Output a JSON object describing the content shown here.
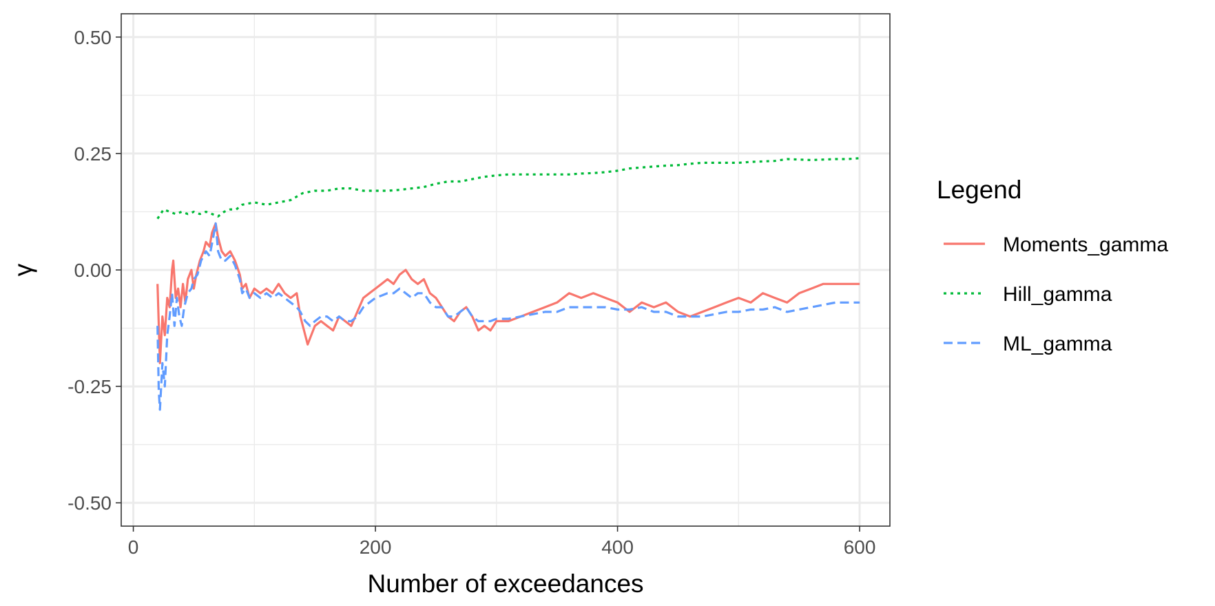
{
  "chart_data": {
    "type": "line",
    "xlabel": "Number of exceedances",
    "ylabel": "γ",
    "xlim": [
      -10,
      625
    ],
    "ylim": [
      -0.55,
      0.55
    ],
    "xticks": [
      0,
      200,
      400,
      600
    ],
    "xtick_labels": [
      "0",
      "200",
      "400",
      "600"
    ],
    "yticks": [
      -0.5,
      -0.25,
      0.0,
      0.25,
      0.5
    ],
    "ytick_labels": [
      "-0.50",
      "-0.25",
      "0.00",
      "0.25",
      "0.50"
    ],
    "grid": true,
    "legend": {
      "title": "Legend",
      "position": "right"
    },
    "series": [
      {
        "name": "Moments_gamma",
        "color": "#F8766D",
        "dash": "solid",
        "points": [
          [
            20,
            -0.03
          ],
          [
            22,
            -0.2
          ],
          [
            24,
            -0.1
          ],
          [
            26,
            -0.14
          ],
          [
            28,
            -0.06
          ],
          [
            30,
            -0.08
          ],
          [
            32,
            0.0
          ],
          [
            33,
            0.02
          ],
          [
            35,
            -0.06
          ],
          [
            37,
            -0.04
          ],
          [
            39,
            -0.08
          ],
          [
            41,
            -0.03
          ],
          [
            43,
            -0.07
          ],
          [
            45,
            -0.02
          ],
          [
            48,
            0.0
          ],
          [
            50,
            -0.04
          ],
          [
            52,
            -0.01
          ],
          [
            55,
            0.02
          ],
          [
            58,
            0.04
          ],
          [
            60,
            0.06
          ],
          [
            63,
            0.05
          ],
          [
            65,
            0.08
          ],
          [
            68,
            0.1
          ],
          [
            70,
            0.07
          ],
          [
            73,
            0.04
          ],
          [
            76,
            0.03
          ],
          [
            80,
            0.04
          ],
          [
            84,
            0.02
          ],
          [
            88,
            -0.01
          ],
          [
            90,
            -0.04
          ],
          [
            93,
            -0.03
          ],
          [
            96,
            -0.06
          ],
          [
            100,
            -0.04
          ],
          [
            105,
            -0.05
          ],
          [
            110,
            -0.04
          ],
          [
            115,
            -0.05
          ],
          [
            120,
            -0.03
          ],
          [
            125,
            -0.05
          ],
          [
            130,
            -0.06
          ],
          [
            135,
            -0.05
          ],
          [
            138,
            -0.1
          ],
          [
            141,
            -0.13
          ],
          [
            144,
            -0.16
          ],
          [
            147,
            -0.14
          ],
          [
            150,
            -0.12
          ],
          [
            155,
            -0.11
          ],
          [
            160,
            -0.12
          ],
          [
            165,
            -0.13
          ],
          [
            170,
            -0.1
          ],
          [
            175,
            -0.11
          ],
          [
            180,
            -0.12
          ],
          [
            185,
            -0.09
          ],
          [
            190,
            -0.06
          ],
          [
            195,
            -0.05
          ],
          [
            200,
            -0.04
          ],
          [
            205,
            -0.03
          ],
          [
            210,
            -0.02
          ],
          [
            215,
            -0.03
          ],
          [
            220,
            -0.01
          ],
          [
            225,
            0.0
          ],
          [
            230,
            -0.02
          ],
          [
            235,
            -0.03
          ],
          [
            240,
            -0.02
          ],
          [
            245,
            -0.05
          ],
          [
            250,
            -0.06
          ],
          [
            255,
            -0.08
          ],
          [
            260,
            -0.1
          ],
          [
            265,
            -0.11
          ],
          [
            270,
            -0.09
          ],
          [
            275,
            -0.08
          ],
          [
            280,
            -0.1
          ],
          [
            285,
            -0.13
          ],
          [
            290,
            -0.12
          ],
          [
            295,
            -0.13
          ],
          [
            300,
            -0.11
          ],
          [
            310,
            -0.11
          ],
          [
            320,
            -0.1
          ],
          [
            330,
            -0.09
          ],
          [
            340,
            -0.08
          ],
          [
            350,
            -0.07
          ],
          [
            360,
            -0.05
          ],
          [
            370,
            -0.06
          ],
          [
            380,
            -0.05
          ],
          [
            390,
            -0.06
          ],
          [
            400,
            -0.07
          ],
          [
            410,
            -0.09
          ],
          [
            420,
            -0.07
          ],
          [
            430,
            -0.08
          ],
          [
            440,
            -0.07
          ],
          [
            450,
            -0.09
          ],
          [
            460,
            -0.1
          ],
          [
            470,
            -0.09
          ],
          [
            480,
            -0.08
          ],
          [
            490,
            -0.07
          ],
          [
            500,
            -0.06
          ],
          [
            510,
            -0.07
          ],
          [
            520,
            -0.05
          ],
          [
            530,
            -0.06
          ],
          [
            540,
            -0.07
          ],
          [
            550,
            -0.05
          ],
          [
            560,
            -0.04
          ],
          [
            570,
            -0.03
          ],
          [
            580,
            -0.03
          ],
          [
            590,
            -0.03
          ],
          [
            600,
            -0.03
          ]
        ]
      },
      {
        "name": "Hill_gamma",
        "color": "#00BA38",
        "dash": "dotted",
        "points": [
          [
            20,
            0.11
          ],
          [
            25,
            0.13
          ],
          [
            30,
            0.125
          ],
          [
            35,
            0.12
          ],
          [
            40,
            0.125
          ],
          [
            45,
            0.12
          ],
          [
            50,
            0.125
          ],
          [
            55,
            0.12
          ],
          [
            60,
            0.125
          ],
          [
            65,
            0.12
          ],
          [
            70,
            0.115
          ],
          [
            75,
            0.125
          ],
          [
            80,
            0.13
          ],
          [
            85,
            0.13
          ],
          [
            90,
            0.14
          ],
          [
            100,
            0.145
          ],
          [
            110,
            0.14
          ],
          [
            120,
            0.145
          ],
          [
            130,
            0.15
          ],
          [
            140,
            0.165
          ],
          [
            150,
            0.17
          ],
          [
            160,
            0.17
          ],
          [
            170,
            0.175
          ],
          [
            180,
            0.175
          ],
          [
            190,
            0.17
          ],
          [
            200,
            0.17
          ],
          [
            210,
            0.17
          ],
          [
            220,
            0.172
          ],
          [
            230,
            0.175
          ],
          [
            240,
            0.178
          ],
          [
            250,
            0.185
          ],
          [
            260,
            0.19
          ],
          [
            270,
            0.19
          ],
          [
            280,
            0.195
          ],
          [
            290,
            0.2
          ],
          [
            300,
            0.203
          ],
          [
            310,
            0.205
          ],
          [
            320,
            0.205
          ],
          [
            330,
            0.205
          ],
          [
            340,
            0.205
          ],
          [
            350,
            0.205
          ],
          [
            360,
            0.205
          ],
          [
            370,
            0.207
          ],
          [
            380,
            0.208
          ],
          [
            390,
            0.21
          ],
          [
            400,
            0.213
          ],
          [
            410,
            0.218
          ],
          [
            420,
            0.22
          ],
          [
            430,
            0.222
          ],
          [
            440,
            0.224
          ],
          [
            450,
            0.225
          ],
          [
            460,
            0.228
          ],
          [
            470,
            0.23
          ],
          [
            480,
            0.23
          ],
          [
            490,
            0.23
          ],
          [
            500,
            0.23
          ],
          [
            510,
            0.232
          ],
          [
            520,
            0.233
          ],
          [
            530,
            0.234
          ],
          [
            540,
            0.238
          ],
          [
            550,
            0.237
          ],
          [
            560,
            0.236
          ],
          [
            570,
            0.237
          ],
          [
            580,
            0.238
          ],
          [
            590,
            0.238
          ],
          [
            600,
            0.24
          ]
        ]
      },
      {
        "name": "ML_gamma",
        "color": "#619CFF",
        "dash": "dashed",
        "points": [
          [
            20,
            -0.12
          ],
          [
            21,
            -0.26
          ],
          [
            22,
            -0.3
          ],
          [
            24,
            -0.2
          ],
          [
            26,
            -0.25
          ],
          [
            28,
            -0.14
          ],
          [
            30,
            -0.1
          ],
          [
            32,
            -0.05
          ],
          [
            34,
            -0.12
          ],
          [
            36,
            -0.06
          ],
          [
            38,
            -0.1
          ],
          [
            40,
            -0.12
          ],
          [
            42,
            -0.08
          ],
          [
            45,
            -0.05
          ],
          [
            48,
            -0.04
          ],
          [
            50,
            -0.02
          ],
          [
            53,
            -0.01
          ],
          [
            56,
            0.02
          ],
          [
            60,
            0.04
          ],
          [
            63,
            0.03
          ],
          [
            66,
            0.07
          ],
          [
            68,
            0.1
          ],
          [
            70,
            0.04
          ],
          [
            73,
            0.02
          ],
          [
            76,
            0.02
          ],
          [
            80,
            0.03
          ],
          [
            84,
            0.01
          ],
          [
            88,
            -0.02
          ],
          [
            90,
            -0.05
          ],
          [
            93,
            -0.04
          ],
          [
            96,
            -0.06
          ],
          [
            100,
            -0.05
          ],
          [
            105,
            -0.06
          ],
          [
            110,
            -0.05
          ],
          [
            115,
            -0.06
          ],
          [
            120,
            -0.05
          ],
          [
            125,
            -0.06
          ],
          [
            130,
            -0.07
          ],
          [
            135,
            -0.08
          ],
          [
            138,
            -0.09
          ],
          [
            142,
            -0.11
          ],
          [
            146,
            -0.12
          ],
          [
            150,
            -0.11
          ],
          [
            155,
            -0.1
          ],
          [
            160,
            -0.1
          ],
          [
            165,
            -0.11
          ],
          [
            170,
            -0.1
          ],
          [
            175,
            -0.11
          ],
          [
            180,
            -0.11
          ],
          [
            185,
            -0.1
          ],
          [
            190,
            -0.08
          ],
          [
            195,
            -0.07
          ],
          [
            200,
            -0.06
          ],
          [
            205,
            -0.055
          ],
          [
            210,
            -0.05
          ],
          [
            215,
            -0.05
          ],
          [
            220,
            -0.04
          ],
          [
            225,
            -0.05
          ],
          [
            230,
            -0.06
          ],
          [
            235,
            -0.05
          ],
          [
            240,
            -0.05
          ],
          [
            245,
            -0.07
          ],
          [
            250,
            -0.08
          ],
          [
            255,
            -0.08
          ],
          [
            260,
            -0.1
          ],
          [
            265,
            -0.1
          ],
          [
            270,
            -0.09
          ],
          [
            275,
            -0.08
          ],
          [
            280,
            -0.1
          ],
          [
            285,
            -0.11
          ],
          [
            290,
            -0.11
          ],
          [
            295,
            -0.11
          ],
          [
            300,
            -0.105
          ],
          [
            310,
            -0.105
          ],
          [
            320,
            -0.1
          ],
          [
            330,
            -0.095
          ],
          [
            340,
            -0.09
          ],
          [
            350,
            -0.09
          ],
          [
            360,
            -0.08
          ],
          [
            370,
            -0.08
          ],
          [
            380,
            -0.08
          ],
          [
            390,
            -0.08
          ],
          [
            400,
            -0.085
          ],
          [
            410,
            -0.085
          ],
          [
            420,
            -0.08
          ],
          [
            430,
            -0.09
          ],
          [
            440,
            -0.09
          ],
          [
            450,
            -0.1
          ],
          [
            460,
            -0.1
          ],
          [
            470,
            -0.1
          ],
          [
            480,
            -0.095
          ],
          [
            490,
            -0.09
          ],
          [
            500,
            -0.09
          ],
          [
            510,
            -0.085
          ],
          [
            520,
            -0.085
          ],
          [
            530,
            -0.08
          ],
          [
            540,
            -0.09
          ],
          [
            550,
            -0.085
          ],
          [
            560,
            -0.08
          ],
          [
            570,
            -0.075
          ],
          [
            580,
            -0.07
          ],
          [
            590,
            -0.07
          ],
          [
            600,
            -0.07
          ]
        ]
      }
    ]
  }
}
